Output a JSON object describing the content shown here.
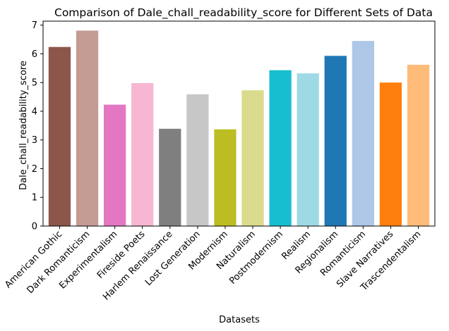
{
  "chart_data": {
    "type": "bar",
    "title": "Comparison of Dale_chall_readability_score for Different Sets of Data",
    "xlabel": "Datasets",
    "ylabel": "Dale_chall_readability_score",
    "ylim": [
      0,
      7.14
    ],
    "yticks": [
      0,
      1,
      2,
      3,
      4,
      5,
      6,
      7
    ],
    "grid": false,
    "legend": "none",
    "categories": [
      "American Gothic",
      "Dark Romanticism",
      "Experimentalism",
      "Fireside Poets",
      "Harlem Renaissance",
      "Lost Generation",
      "Modernism",
      "Naturalism",
      "Postmodernism",
      "Realism",
      "Regionalism",
      "Romanticism",
      "Slave Narratives",
      "Trascendentalism"
    ],
    "values": [
      6.24,
      6.81,
      4.23,
      4.98,
      3.39,
      4.59,
      3.37,
      4.73,
      5.43,
      5.32,
      5.93,
      6.45,
      5.0,
      5.62
    ],
    "colors": [
      "#8c564b",
      "#c49c94",
      "#e377c2",
      "#f7b6d2",
      "#7f7f7f",
      "#c7c7c7",
      "#bcbd22",
      "#dbdb8d",
      "#17becf",
      "#9edae5",
      "#1f77b4",
      "#aec7e8",
      "#ff7f0e",
      "#ffbb78"
    ]
  }
}
